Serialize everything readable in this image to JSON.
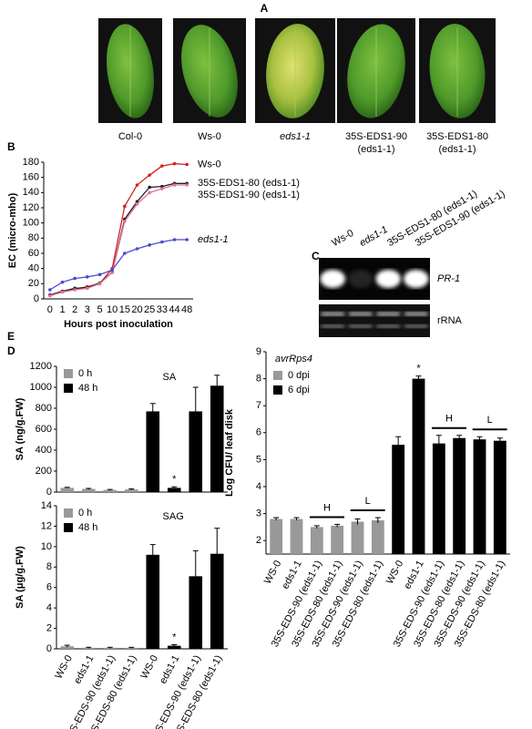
{
  "panel_a": {
    "label": "A",
    "samples": [
      {
        "lines": [
          "Col-0"
        ]
      },
      {
        "lines": [
          "Ws-0"
        ]
      },
      {
        "lines": [
          "eds1-1"
        ]
      },
      {
        "lines": [
          "35S-EDS1-90",
          "(eds1-1)"
        ]
      },
      {
        "lines": [
          "35S-EDS1-80",
          "(eds1-1)"
        ]
      }
    ]
  },
  "panel_c": {
    "label": "C",
    "lanes": [
      "Ws-0",
      "eds1-1",
      "35S-EDS1-80 (eds1-1)",
      "35S-EDS1-90 (eds1-1)"
    ],
    "rows": [
      "PR-1",
      "rRNA"
    ]
  },
  "chart_data": [
    {
      "panel": "B",
      "type": "line",
      "y_label": "EC (micro-mho)",
      "x_label": "Hours post inoculation",
      "categories": [
        "0",
        "1",
        "2",
        "3",
        "5",
        "10",
        "15",
        "20",
        "25",
        "33",
        "44",
        "48"
      ],
      "ylim": [
        0,
        180
      ],
      "yticks": [
        0,
        20,
        40,
        60,
        80,
        100,
        120,
        140,
        160,
        180
      ],
      "series": [
        {
          "name": "Ws-0",
          "color": "#d62020",
          "values": [
            5,
            10,
            13,
            16,
            20,
            40,
            122,
            150,
            163,
            175,
            178,
            177
          ]
        },
        {
          "name": "35S-EDS1-80 (eds1-1)",
          "color": "#222222",
          "values": [
            5,
            10,
            14,
            15,
            21,
            35,
            105,
            128,
            147,
            148,
            152,
            152
          ]
        },
        {
          "name": "35S-EDS1-90 (eds1-1)",
          "color": "#e0709a",
          "values": [
            4,
            9,
            12,
            14,
            20,
            35,
            102,
            125,
            140,
            145,
            150,
            150
          ]
        },
        {
          "name": "eds1-1",
          "color": "#4a4ad0",
          "values": [
            12,
            22,
            27,
            29,
            32,
            38,
            60,
            66,
            71,
            75,
            78,
            78
          ]
        }
      ]
    },
    {
      "panel": "D",
      "type": "bar",
      "y_label": "SA (ng/g.FW)",
      "inner_label": "SA",
      "annotations": [
        "*"
      ],
      "ylim": [
        0,
        1200
      ],
      "yticks": [
        0,
        200,
        400,
        600,
        800,
        1000,
        1200
      ],
      "series": [
        {
          "name": "0 h",
          "color": "#999999",
          "values": [
            40,
            30,
            20,
            25,
            null,
            null,
            null,
            null
          ],
          "errors": [
            5,
            5,
            5,
            5,
            null,
            null,
            null,
            null
          ]
        },
        {
          "name": "48 h",
          "color": "#000000",
          "values": [
            null,
            null,
            null,
            null,
            770,
            40,
            770,
            1015
          ],
          "errors": [
            null,
            null,
            null,
            null,
            75,
            10,
            230,
            100
          ]
        }
      ]
    },
    {
      "type": "bar",
      "y_label": "SA (μg/g.FW)",
      "inner_label": "SAG",
      "annotations": [
        "*"
      ],
      "categories": [
        "WS-0",
        "eds1-1",
        "35S-EDS-90 (eds1-1)",
        "35S-EDS-80 (eds1-1)",
        "WS-0",
        "eds1-1",
        "35S-EDS-90 (eds1-1)",
        "35S-EDS-80 (eds1-1)"
      ],
      "ylim": [
        0,
        14
      ],
      "yticks": [
        0,
        2,
        4,
        6,
        8,
        10,
        12,
        14
      ],
      "series": [
        {
          "name": "0 h",
          "color": "#999999",
          "values": [
            0.25,
            0.1,
            0.1,
            0.1,
            null,
            null,
            null,
            null
          ],
          "errors": [
            0.1,
            0.05,
            0.05,
            0.05,
            null,
            null,
            null,
            null
          ]
        },
        {
          "name": "48 h",
          "color": "#000000",
          "values": [
            null,
            null,
            null,
            null,
            9.2,
            0.3,
            7.1,
            9.3
          ],
          "errors": [
            null,
            null,
            null,
            null,
            1.0,
            0.1,
            2.5,
            2.5
          ]
        }
      ]
    },
    {
      "panel": "E",
      "type": "bar",
      "y_label": "Log CFU/ leaf disk",
      "legend_title": "avrRps4",
      "annotations": [
        "H",
        "L",
        "*",
        "H",
        "L"
      ],
      "categories": [
        "WS-0",
        "eds1-1",
        "35S-EDS-90 (eds1-1)",
        "35S-EDS-80 (eds1-1)",
        "35S-EDS-90 (eds1-1)",
        "35S-EDS-80 (eds1-1)",
        "WS-0",
        "eds1-1",
        "35S-EDS-90 (eds1-1)",
        "35S-EDS-80 (eds1-1)",
        "35S-EDS-90 (eds1-1)",
        "35S-EDS-80 (eds1-1)"
      ],
      "ylim": [
        1.5,
        9
      ],
      "yticks": [
        2,
        3,
        4,
        5,
        6,
        7,
        8,
        9
      ],
      "series": [
        {
          "name": "0 dpi",
          "color": "#999999",
          "values": [
            2.8,
            2.8,
            2.5,
            2.55,
            2.7,
            2.75,
            null,
            null,
            null,
            null,
            null,
            null
          ],
          "errors": [
            0.05,
            0.05,
            0.05,
            0.05,
            0.1,
            0.1,
            null,
            null,
            null,
            null,
            null,
            null
          ]
        },
        {
          "name": "6 dpi",
          "color": "#000000",
          "values": [
            null,
            null,
            null,
            null,
            null,
            null,
            5.55,
            8.0,
            5.6,
            5.8,
            5.75,
            5.7
          ],
          "errors": [
            null,
            null,
            null,
            null,
            null,
            null,
            0.3,
            0.1,
            0.3,
            0.1,
            0.1,
            0.1
          ]
        }
      ]
    }
  ]
}
